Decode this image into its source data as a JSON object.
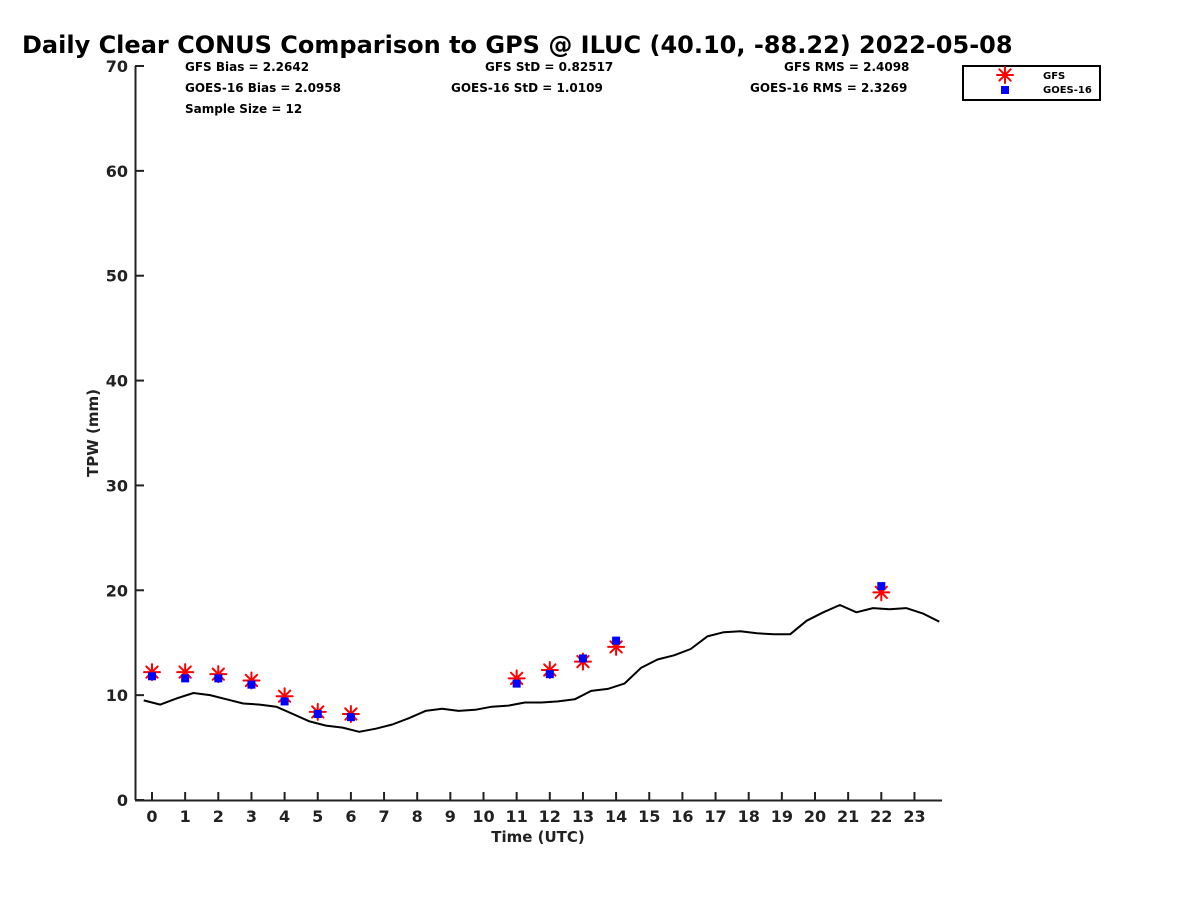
{
  "chart_data": {
    "type": "line",
    "title": "Daily Clear CONUS Comparison to GPS @ ILUC (40.10, -88.22) 2022-05-08",
    "xlabel": "Time (UTC)",
    "ylabel": "TPW (mm)",
    "xlim": [
      -0.5,
      23.8
    ],
    "ylim": [
      0,
      70
    ],
    "x_ticks": [
      0,
      1,
      2,
      3,
      4,
      5,
      6,
      7,
      8,
      9,
      10,
      11,
      12,
      13,
      14,
      15,
      16,
      17,
      18,
      19,
      20,
      21,
      22,
      23
    ],
    "y_ticks": [
      0,
      10,
      20,
      30,
      40,
      50,
      60,
      70
    ],
    "grid": false,
    "legend_position": "top-right, outside plot",
    "stats": {
      "gfs_bias": "GFS Bias = 2.2642",
      "goes_bias": "GOES-16 Bias = 2.0958",
      "sample_size": "Sample Size = 12",
      "gfs_std": "GFS StD = 0.82517",
      "goes_std": "GOES-16 StD = 1.0109",
      "gfs_rms": "GFS RMS = 2.4098",
      "goes_rms": "GOES-16 RMS = 2.3269"
    },
    "series": [
      {
        "key": "gps",
        "type": "line",
        "color": "#000000",
        "x": [
          -0.25,
          0.25,
          0.75,
          1.25,
          1.75,
          2.25,
          2.75,
          3.25,
          3.75,
          4.25,
          4.75,
          5.25,
          5.75,
          6.25,
          6.75,
          7.25,
          7.75,
          8.25,
          8.75,
          9.25,
          9.75,
          10.25,
          10.75,
          11.25,
          11.75,
          12.25,
          12.75,
          13.25,
          13.75,
          14.25,
          14.75,
          15.25,
          15.75,
          16.25,
          16.75,
          17.25,
          17.75,
          18.25,
          18.75,
          19.25,
          19.75,
          20.25,
          20.75,
          21.25,
          21.75,
          22.25,
          22.75,
          23.25,
          23.75
        ],
        "y": [
          9.5,
          9.1,
          9.7,
          10.2,
          10.0,
          9.6,
          9.2,
          9.1,
          8.9,
          8.2,
          7.5,
          7.1,
          6.9,
          6.5,
          6.8,
          7.2,
          7.8,
          8.5,
          8.7,
          8.5,
          8.6,
          8.9,
          9.0,
          9.3,
          9.3,
          9.4,
          9.6,
          10.4,
          10.6,
          11.1,
          12.6,
          13.4,
          13.8,
          14.4,
          15.6,
          16.0,
          16.1,
          15.9,
          15.8,
          15.8,
          17.1,
          17.9,
          18.6,
          17.9,
          18.3,
          18.2,
          18.3,
          17.8,
          17.0
        ]
      },
      {
        "name": "GFS",
        "key": "gfs",
        "type": "scatter",
        "marker": "asterisk",
        "color": "#ff0000",
        "x": [
          0,
          1,
          2,
          3,
          4,
          5,
          6,
          11,
          12,
          13,
          14,
          22
        ],
        "y": [
          12.2,
          12.2,
          12.0,
          11.4,
          9.9,
          8.4,
          8.2,
          11.6,
          12.4,
          13.2,
          14.6,
          19.8
        ]
      },
      {
        "name": "GOES-16",
        "key": "goes",
        "type": "scatter",
        "marker": "square",
        "color": "#0000ff",
        "x": [
          0,
          1,
          2,
          3,
          4,
          5,
          6,
          11,
          12,
          13,
          14,
          22
        ],
        "y": [
          11.8,
          11.6,
          11.6,
          11.0,
          9.4,
          8.2,
          7.9,
          11.1,
          12.0,
          13.5,
          15.2,
          20.4
        ]
      }
    ]
  }
}
